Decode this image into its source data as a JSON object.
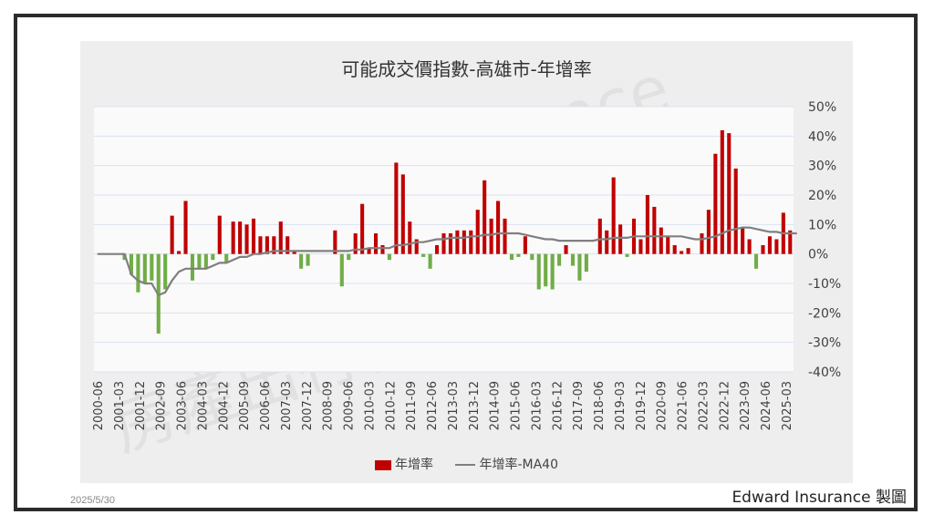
{
  "date_stamp": "2025/5/30",
  "credit": "Edward Insurance 製圖",
  "watermark_lines": [
    "Edward Insurance",
    "房產出行保險規劃"
  ],
  "colors": {
    "bar": "#c00000",
    "bar_negative": "#70ad47",
    "ma_line": "#7f7f7f",
    "grid": "#d9e1f2"
  },
  "chart_data": {
    "type": "bar",
    "title": "可能成交價指數-高雄市-年增率",
    "ylim": [
      -40,
      50
    ],
    "yticks": [
      "50%",
      "40%",
      "30%",
      "20%",
      "10%",
      "0%",
      "-10%",
      "-20%",
      "-30%",
      "-40%"
    ],
    "ytick_values": [
      50,
      40,
      30,
      20,
      10,
      0,
      -10,
      -20,
      -30,
      -40
    ],
    "y_axis_side": "right",
    "grid": true,
    "legend_position": "bottom",
    "xtick_labels": [
      "2000-06",
      "2001-03",
      "2001-12",
      "2002-09",
      "2003-06",
      "2004-03",
      "2004-12",
      "2005-09",
      "2006-06",
      "2007-03",
      "2007-12",
      "2008-09",
      "2009-06",
      "2010-03",
      "2010-12",
      "2011-09",
      "2012-06",
      "2013-03",
      "2013-12",
      "2014-09",
      "2015-06",
      "2016-03",
      "2016-12",
      "2017-09",
      "2018-06",
      "2019-03",
      "2019-12",
      "2020-09",
      "2021-06",
      "2022-03",
      "2022-12",
      "2023-09",
      "2024-06",
      "2025-03"
    ],
    "series": [
      {
        "name": "年增率",
        "kind": "bar",
        "values": [
          0,
          0,
          0,
          0,
          -2,
          -7,
          -13,
          -10,
          -9,
          -27,
          -12,
          13,
          1,
          18,
          -9,
          -5,
          -5,
          -2,
          13,
          -3,
          11,
          11,
          10,
          12,
          6,
          6,
          6,
          11,
          6,
          1,
          -5,
          -4,
          0,
          0,
          0,
          8,
          -11,
          -2,
          7,
          17,
          2,
          7,
          3,
          -2,
          31,
          27,
          11,
          5,
          -1,
          -5,
          3,
          7,
          7,
          8,
          8,
          8,
          15,
          25,
          12,
          18,
          12,
          -2,
          -1,
          6,
          -2,
          -12,
          -11,
          -12,
          -4,
          3,
          -4,
          -9,
          -6,
          0,
          12,
          8,
          26,
          10,
          -1,
          12,
          5,
          20,
          16,
          9,
          6,
          3,
          1,
          2,
          0,
          7,
          15,
          34,
          42,
          41,
          29,
          9,
          5,
          -5,
          3,
          6,
          5,
          14,
          8
        ]
      },
      {
        "name": "年增率-MA40",
        "kind": "line",
        "values": [
          0,
          0,
          0,
          0,
          0,
          -7,
          -9,
          -10,
          -10,
          -14,
          -13,
          -9,
          -6,
          -5,
          -5,
          -5,
          -5,
          -4,
          -3,
          -3,
          -2,
          -1,
          -1,
          0,
          0,
          0.5,
          1,
          1,
          1,
          1,
          1,
          1,
          1,
          1,
          1,
          1,
          1,
          1,
          1.5,
          1.5,
          2,
          2,
          2,
          2,
          3,
          3,
          3.5,
          4,
          4,
          4.5,
          5,
          5,
          5.5,
          5.5,
          5.5,
          6,
          6,
          6.5,
          6.5,
          7,
          7,
          7,
          7,
          6.5,
          6,
          5.5,
          5,
          5,
          4.5,
          4.5,
          4.5,
          4.5,
          4.5,
          4.5,
          5,
          5,
          5.5,
          5.5,
          5.5,
          6,
          6,
          6,
          6,
          6,
          6,
          6,
          6,
          5.5,
          5,
          5,
          5.5,
          6,
          7,
          8,
          8.5,
          9,
          9,
          8.5,
          8,
          7.5,
          7.5,
          7,
          7,
          7
        ]
      }
    ]
  }
}
